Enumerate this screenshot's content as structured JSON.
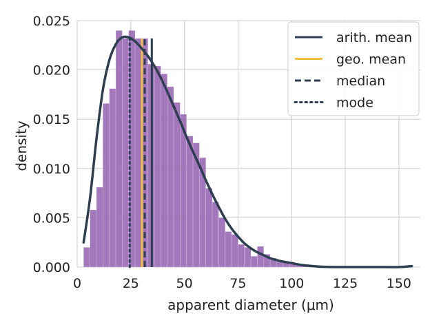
{
  "chart_data": {
    "type": "histogram",
    "xlabel": "apparent diameter (μm)",
    "ylabel": "density",
    "xlim": [
      0,
      160
    ],
    "ylim": [
      0,
      0.025
    ],
    "xticks": [
      0,
      25,
      50,
      75,
      100,
      125,
      150
    ],
    "yticks": [
      "0.000",
      "0.005",
      "0.010",
      "0.015",
      "0.020",
      "0.025"
    ],
    "grid": true,
    "legend_position": "top-right",
    "colors": {
      "bars": "#9b6bb5",
      "kde": "#2c3e50",
      "arith_mean": "#2c3e50",
      "geo_mean": "#f5be41",
      "median": "#2c3e50",
      "mode": "#2c3e50"
    },
    "histogram": {
      "bin_width": 3.0,
      "bins": [
        {
          "x0": 3,
          "x1": 6,
          "value": 0.002
        },
        {
          "x0": 6,
          "x1": 9,
          "value": 0.0058
        },
        {
          "x0": 9,
          "x1": 12,
          "value": 0.0081
        },
        {
          "x0": 12,
          "x1": 15,
          "value": 0.0166
        },
        {
          "x0": 15,
          "x1": 18,
          "value": 0.0181
        },
        {
          "x0": 18,
          "x1": 21,
          "value": 0.024
        },
        {
          "x0": 21,
          "x1": 24,
          "value": 0.0232
        },
        {
          "x0": 24,
          "x1": 27,
          "value": 0.024
        },
        {
          "x0": 27,
          "x1": 30,
          "value": 0.0232
        },
        {
          "x0": 30,
          "x1": 33,
          "value": 0.0232
        },
        {
          "x0": 33,
          "x1": 36,
          "value": 0.0206
        },
        {
          "x0": 36,
          "x1": 39,
          "value": 0.0204
        },
        {
          "x0": 39,
          "x1": 42,
          "value": 0.0196
        },
        {
          "x0": 42,
          "x1": 45,
          "value": 0.0183
        },
        {
          "x0": 45,
          "x1": 48,
          "value": 0.0167
        },
        {
          "x0": 48,
          "x1": 51,
          "value": 0.0155
        },
        {
          "x0": 51,
          "x1": 54,
          "value": 0.0133
        },
        {
          "x0": 54,
          "x1": 57,
          "value": 0.0126
        },
        {
          "x0": 57,
          "x1": 60,
          "value": 0.0111
        },
        {
          "x0": 60,
          "x1": 63,
          "value": 0.008
        },
        {
          "x0": 63,
          "x1": 66,
          "value": 0.0066
        },
        {
          "x0": 66,
          "x1": 69,
          "value": 0.005
        },
        {
          "x0": 69,
          "x1": 72,
          "value": 0.0036
        },
        {
          "x0": 72,
          "x1": 75,
          "value": 0.0033
        },
        {
          "x0": 75,
          "x1": 78,
          "value": 0.0023
        },
        {
          "x0": 78,
          "x1": 81,
          "value": 0.002
        },
        {
          "x0": 81,
          "x1": 84,
          "value": 0.0011
        },
        {
          "x0": 84,
          "x1": 87,
          "value": 0.0021
        },
        {
          "x0": 87,
          "x1": 90,
          "value": 0.0013
        },
        {
          "x0": 90,
          "x1": 93,
          "value": 0.0009
        },
        {
          "x0": 93,
          "x1": 96,
          "value": 0.0006
        },
        {
          "x0": 96,
          "x1": 99,
          "value": 0.0005
        },
        {
          "x0": 99,
          "x1": 102,
          "value": 0.0004
        },
        {
          "x0": 102,
          "x1": 105,
          "value": 0.0002
        },
        {
          "x0": 105,
          "x1": 108,
          "value": 0.0001
        }
      ]
    },
    "kde": {
      "x": [
        3,
        6,
        9,
        12,
        15,
        18,
        21,
        24,
        27,
        30,
        33,
        36,
        39,
        42,
        45,
        48,
        51,
        54,
        57,
        60,
        63,
        66,
        69,
        72,
        75,
        78,
        81,
        84,
        87,
        90,
        95,
        100,
        105,
        110,
        115,
        120,
        130,
        140,
        150,
        156
      ],
      "y": [
        0.0025,
        0.007,
        0.013,
        0.018,
        0.021,
        0.0226,
        0.0233,
        0.0233,
        0.0229,
        0.0222,
        0.0214,
        0.0204,
        0.0192,
        0.0178,
        0.0163,
        0.0148,
        0.0132,
        0.0117,
        0.0103,
        0.0088,
        0.0074,
        0.0061,
        0.0049,
        0.0039,
        0.0031,
        0.0024,
        0.0019,
        0.0015,
        0.0012,
        0.0009,
        0.0006,
        0.0004,
        0.0002,
        0.0001,
        3e-05,
        0.0,
        0.0,
        0.0,
        0.0,
        0.0001
      ]
    },
    "vlines": [
      {
        "name": "arith. mean",
        "x": 34.8,
        "y0": 0,
        "y1": 0.0232,
        "style": "solid"
      },
      {
        "name": "geo. mean",
        "x": 30.2,
        "y0": 0,
        "y1": 0.0232,
        "style": "solid"
      },
      {
        "name": "median",
        "x": 31.5,
        "y0": 0,
        "y1": 0.0232,
        "style": "dashed"
      },
      {
        "name": "mode",
        "x": 24.5,
        "y0": 0,
        "y1": 0.0232,
        "style": "dotted"
      }
    ],
    "legend": [
      {
        "label": "arith. mean",
        "style": "solid",
        "color": "#2c3e50"
      },
      {
        "label": "geo. mean",
        "style": "solid",
        "color": "#f5be41"
      },
      {
        "label": "median",
        "style": "dashed",
        "color": "#2c3e50"
      },
      {
        "label": "mode",
        "style": "dotted",
        "color": "#2c3e50"
      }
    ]
  }
}
